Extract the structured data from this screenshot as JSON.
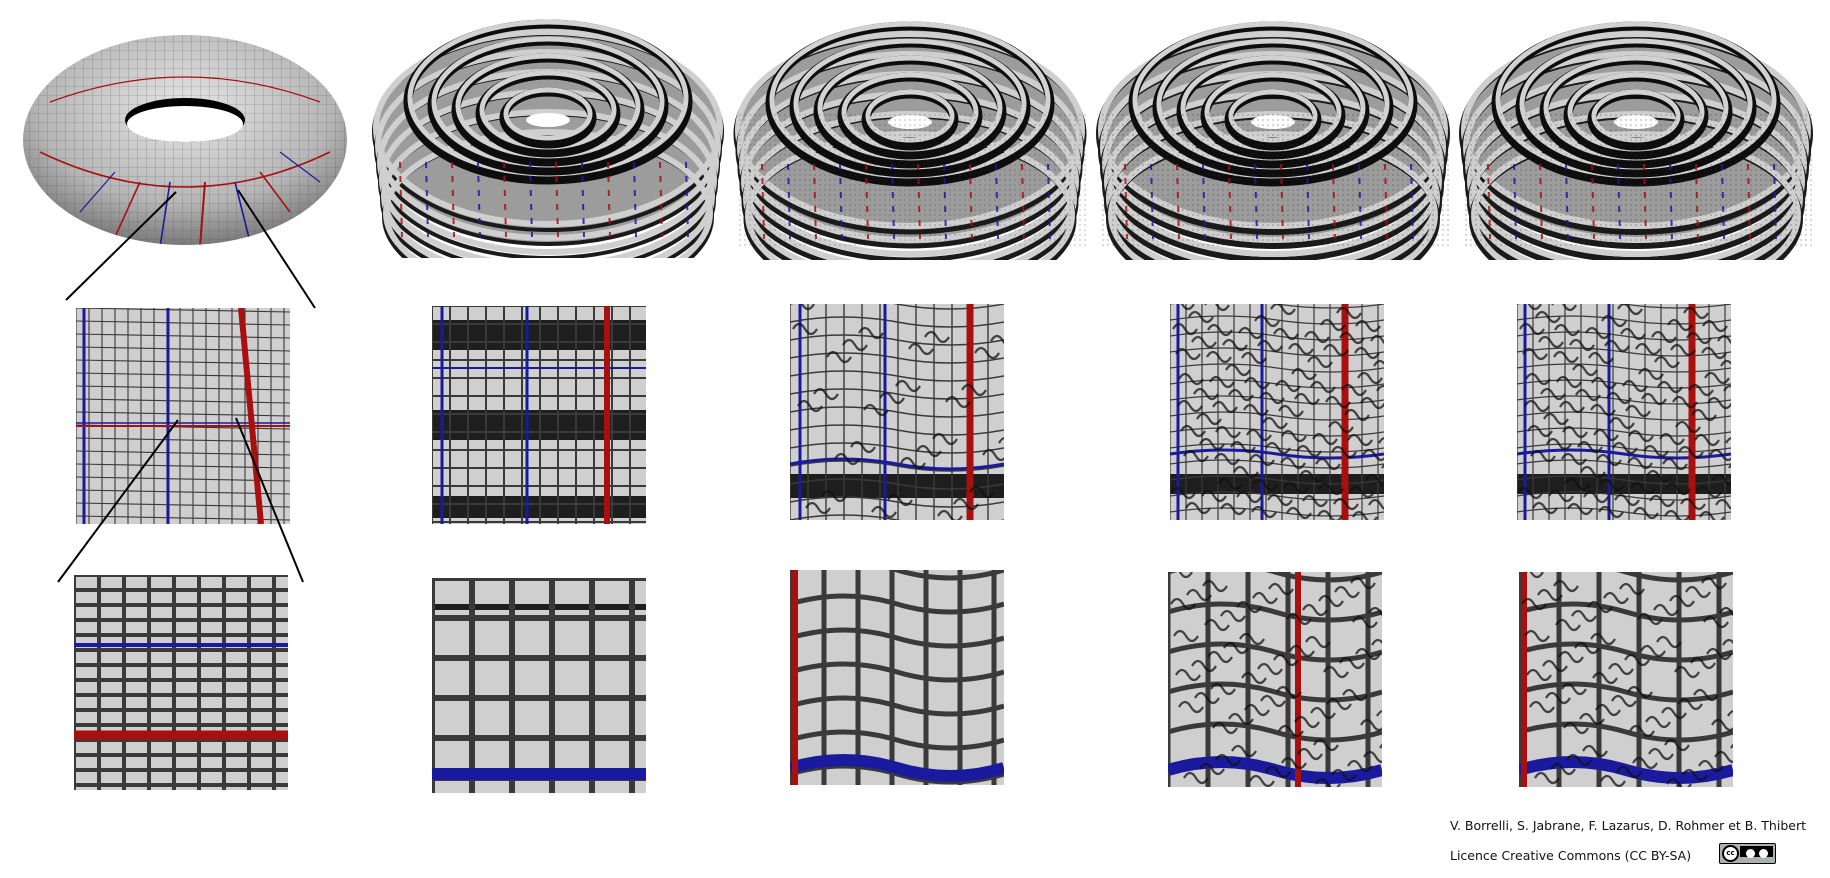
{
  "figure": {
    "columns": [
      {
        "id": "col-0",
        "surface": "smooth-torus"
      },
      {
        "id": "col-1",
        "surface": "corrugated-torus-1"
      },
      {
        "id": "col-2",
        "surface": "corrugated-torus-2"
      },
      {
        "id": "col-3",
        "surface": "corrugated-torus-3"
      },
      {
        "id": "col-4",
        "surface": "corrugated-torus-4"
      }
    ],
    "zoom_levels": [
      "overview",
      "zoom-1",
      "zoom-2"
    ],
    "colors": {
      "surface": "#c9c9c9",
      "surface_dark": "#1a1a1a",
      "grid": "#3a3a3a",
      "meridian": "#1a1a9e",
      "parallel": "#a80f0f"
    }
  },
  "credits": {
    "authors": "V. Borrelli, S. Jabrane, F. Lazarus, D. Rohmer et B. Thibert",
    "license": "Licence Creative Commons (CC BY-SA)",
    "badge_icon": "cc-by-sa-icon"
  }
}
